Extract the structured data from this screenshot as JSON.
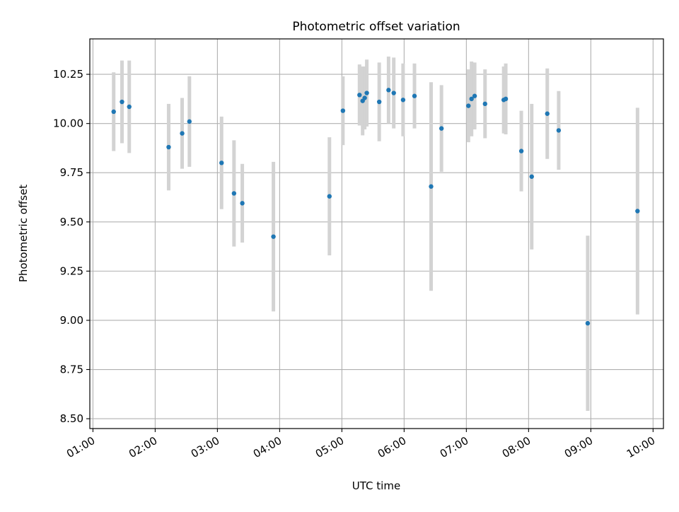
{
  "chart_data": {
    "type": "scatter",
    "title": "Photometric offset variation",
    "xlabel": "UTC time",
    "ylabel": "Photometric offset",
    "x_ticks": [
      "01:00",
      "02:00",
      "03:00",
      "04:00",
      "05:00",
      "06:00",
      "07:00",
      "08:00",
      "09:00",
      "10:00"
    ],
    "y_ticks": [
      "8.50",
      "8.75",
      "9.00",
      "9.25",
      "9.50",
      "9.75",
      "10.00",
      "10.25"
    ],
    "xlim": [
      "00:57",
      "10:10"
    ],
    "ylim": [
      8.45,
      10.43
    ],
    "grid": true,
    "colors": {
      "points": "#1f77b4",
      "errorbars": "#d3d3d3",
      "grid": "#b0b0b0"
    },
    "points": [
      {
        "x": "01:20",
        "y": 10.06,
        "yerr": 0.2
      },
      {
        "x": "01:28",
        "y": 10.11,
        "yerr": 0.21
      },
      {
        "x": "01:35",
        "y": 10.085,
        "yerr": 0.235
      },
      {
        "x": "02:13",
        "y": 9.88,
        "yerr": 0.22
      },
      {
        "x": "02:26",
        "y": 9.95,
        "yerr": 0.18
      },
      {
        "x": "02:33",
        "y": 10.01,
        "yerr": 0.23
      },
      {
        "x": "03:04",
        "y": 9.8,
        "yerr": 0.235
      },
      {
        "x": "03:16",
        "y": 9.645,
        "yerr": 0.27
      },
      {
        "x": "03:24",
        "y": 9.595,
        "yerr": 0.2
      },
      {
        "x": "03:54",
        "y": 9.425,
        "yerr": 0.38
      },
      {
        "x": "04:48",
        "y": 9.63,
        "yerr": 0.3
      },
      {
        "x": "05:01",
        "y": 10.065,
        "yerr": 0.175
      },
      {
        "x": "05:17",
        "y": 10.145,
        "yerr": 0.155
      },
      {
        "x": "05:20",
        "y": 10.115,
        "yerr": 0.175
      },
      {
        "x": "05:22",
        "y": 10.13,
        "yerr": 0.16
      },
      {
        "x": "05:24",
        "y": 10.155,
        "yerr": 0.17
      },
      {
        "x": "05:36",
        "y": 10.11,
        "yerr": 0.2
      },
      {
        "x": "05:45",
        "y": 10.17,
        "yerr": 0.17
      },
      {
        "x": "05:50",
        "y": 10.155,
        "yerr": 0.18
      },
      {
        "x": "05:59",
        "y": 10.12,
        "yerr": 0.185
      },
      {
        "x": "06:10",
        "y": 10.14,
        "yerr": 0.165
      },
      {
        "x": "06:26",
        "y": 9.68,
        "yerr": 0.53
      },
      {
        "x": "06:36",
        "y": 9.975,
        "yerr": 0.22
      },
      {
        "x": "07:02",
        "y": 10.09,
        "yerr": 0.185
      },
      {
        "x": "07:05",
        "y": 10.125,
        "yerr": 0.19
      },
      {
        "x": "07:08",
        "y": 10.14,
        "yerr": 0.17
      },
      {
        "x": "07:18",
        "y": 10.1,
        "yerr": 0.175
      },
      {
        "x": "07:36",
        "y": 10.12,
        "yerr": 0.17
      },
      {
        "x": "07:38",
        "y": 10.125,
        "yerr": 0.18
      },
      {
        "x": "07:53",
        "y": 9.86,
        "yerr": 0.205
      },
      {
        "x": "08:03",
        "y": 9.73,
        "yerr": 0.37
      },
      {
        "x": "08:18",
        "y": 10.05,
        "yerr": 0.23
      },
      {
        "x": "08:29",
        "y": 9.965,
        "yerr": 0.2
      },
      {
        "x": "08:57",
        "y": 8.985,
        "yerr": 0.445
      },
      {
        "x": "09:45",
        "y": 9.555,
        "yerr": 0.525
      }
    ]
  }
}
